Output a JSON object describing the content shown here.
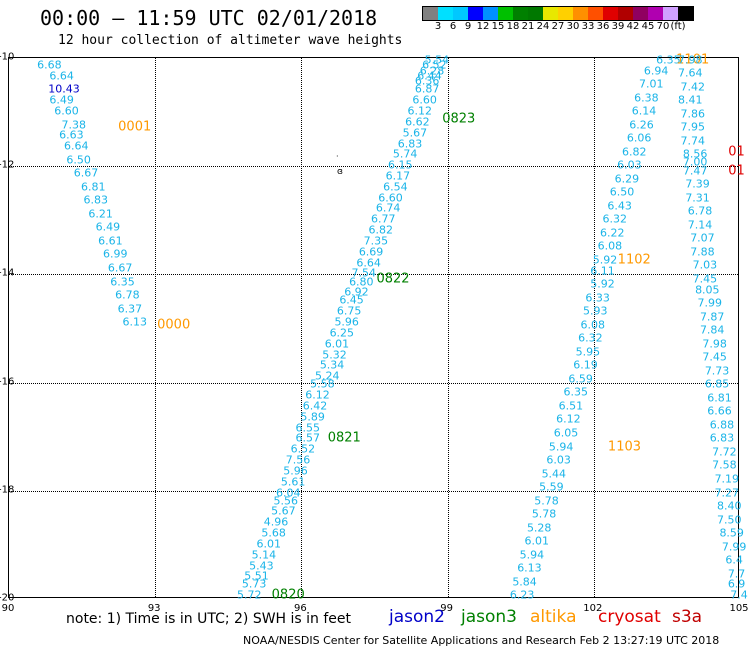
{
  "title": "00:00 – 11:59 UTC 02/01/2018",
  "subtitle": "12 hour collection of altimeter wave heights",
  "colorbar": {
    "colors": [
      "#808080",
      "#00e0ff",
      "#00c8ff",
      "#0000ff",
      "#0090ff",
      "#00c000",
      "#008000",
      "#007800",
      "#e8e800",
      "#ffd000",
      "#ff9000",
      "#ff5000",
      "#e00000",
      "#b00000",
      "#900060",
      "#b000b0",
      "#d0a0ff",
      "#000000"
    ],
    "ticks": [
      "3",
      "6",
      "9",
      "12",
      "15",
      "18",
      "21",
      "24",
      "27",
      "30",
      "33",
      "36",
      "39",
      "42",
      "45",
      "70",
      "(ft)"
    ]
  },
  "axes": {
    "x_ticks": [
      "90",
      "93",
      "96",
      "99",
      "102",
      "105"
    ],
    "y_ticks": [
      "-10",
      "-12",
      "-14",
      "-16",
      "-18",
      "-20"
    ],
    "xlim": [
      90,
      105
    ],
    "ylim": [
      -20,
      -10
    ],
    "grid": true
  },
  "note": "note: 1) Time is in UTC; 2) SWH is in feet",
  "legend": [
    {
      "name": "jason2",
      "color": "#0000c8"
    },
    {
      "name": "jason3",
      "color": "#008000"
    },
    {
      "name": "altika",
      "color": "#ff9900"
    },
    {
      "name": "cryosat",
      "color": "#e00000"
    },
    {
      "name": "s3a",
      "color": "#c00000"
    }
  ],
  "credit": "NOAA/NESDIS Center for Satellite Applications and Research   Feb  2 13:27:19 UTC 2018",
  "chart_data": {
    "type": "scatter",
    "title": "12 hour collection of altimeter wave heights",
    "xlim": [
      90,
      105
    ],
    "ylim": [
      -20,
      -10
    ],
    "units": "ft",
    "tracks": [
      {
        "pass_time": "0001",
        "satellite": "altika",
        "time_label": {
          "x": 92.6,
          "y": -11.3,
          "color": "#ff9900"
        },
        "points": [
          {
            "x": 90.85,
            "y": -10.15,
            "v": "6.68"
          },
          {
            "x": 91.1,
            "y": -10.35,
            "v": "6.64"
          },
          {
            "x": 91.15,
            "y": -10.6,
            "v": "10.43",
            "color": "#0000c8"
          },
          {
            "x": 91.1,
            "y": -10.8,
            "v": "6.49"
          },
          {
            "x": 91.2,
            "y": -11.0,
            "v": "6.60"
          },
          {
            "x": 91.35,
            "y": -11.25,
            "v": "7.38"
          },
          {
            "x": 91.3,
            "y": -11.45,
            "v": "6.63"
          },
          {
            "x": 91.4,
            "y": -11.65,
            "v": "6.64"
          },
          {
            "x": 91.45,
            "y": -11.9,
            "v": "6.50"
          },
          {
            "x": 91.6,
            "y": -12.15,
            "v": "6.67"
          },
          {
            "x": 91.75,
            "y": -12.4,
            "v": "6.81"
          },
          {
            "x": 91.8,
            "y": -12.65,
            "v": "6.83"
          },
          {
            "x": 91.9,
            "y": -12.9,
            "v": "6.21"
          },
          {
            "x": 92.05,
            "y": -13.15,
            "v": "6.49"
          },
          {
            "x": 92.1,
            "y": -13.4,
            "v": "6.61"
          },
          {
            "x": 92.2,
            "y": -13.65,
            "v": "6.99"
          },
          {
            "x": 92.3,
            "y": -13.9,
            "v": "6.67"
          },
          {
            "x": 92.35,
            "y": -14.15,
            "v": "6.35"
          },
          {
            "x": 92.45,
            "y": -14.4,
            "v": "6.78"
          },
          {
            "x": 92.5,
            "y": -14.65,
            "v": "6.37"
          },
          {
            "x": 92.6,
            "y": -14.9,
            "v": "6.13"
          }
        ]
      },
      {
        "pass_time": "0000",
        "satellite": "altika",
        "time_label": {
          "x": 93.4,
          "y": -14.95,
          "color": "#ff9900"
        },
        "points": []
      },
      {
        "pass_time": "0823",
        "satellite": "jason3",
        "time_label": {
          "x": 99.25,
          "y": -11.15,
          "color": "#008000"
        },
        "points": [
          {
            "x": 98.8,
            "y": -10.05,
            "v": "5.54"
          },
          {
            "x": 98.75,
            "y": -10.15,
            "v": "6.52"
          },
          {
            "x": 98.7,
            "y": -10.25,
            "v": "6.28"
          },
          {
            "x": 98.65,
            "y": -10.35,
            "v": "6.44"
          },
          {
            "x": 98.6,
            "y": -10.45,
            "v": "6.36"
          },
          {
            "x": 98.6,
            "y": -10.6,
            "v": "6.87"
          },
          {
            "x": 98.55,
            "y": -10.8,
            "v": "6.60"
          },
          {
            "x": 98.45,
            "y": -11.0,
            "v": "6.12"
          },
          {
            "x": 98.4,
            "y": -11.2,
            "v": "6.62"
          },
          {
            "x": 98.35,
            "y": -11.4,
            "v": "5.67"
          },
          {
            "x": 98.25,
            "y": -11.6,
            "v": "6.83"
          },
          {
            "x": 98.15,
            "y": -11.8,
            "v": "5.74"
          },
          {
            "x": 98.05,
            "y": -12.0,
            "v": "6.15"
          },
          {
            "x": 98.0,
            "y": -12.2,
            "v": "6.17"
          },
          {
            "x": 97.95,
            "y": -12.4,
            "v": "6.54"
          },
          {
            "x": 97.85,
            "y": -12.6,
            "v": "6.60"
          },
          {
            "x": 97.8,
            "y": -12.8,
            "v": "6.74"
          },
          {
            "x": 97.7,
            "y": -13.0,
            "v": "6.77"
          },
          {
            "x": 97.65,
            "y": -13.2,
            "v": "6.82"
          },
          {
            "x": 97.55,
            "y": -13.4,
            "v": "7.35"
          },
          {
            "x": 97.45,
            "y": -13.6,
            "v": "6.69"
          },
          {
            "x": 97.4,
            "y": -13.8,
            "v": "6.64"
          },
          {
            "x": 97.3,
            "y": -14.0,
            "v": "7.54"
          },
          {
            "x": 97.25,
            "y": -14.15,
            "v": "6.80"
          },
          {
            "x": 97.15,
            "y": -14.35,
            "v": "6.92"
          },
          {
            "x": 97.05,
            "y": -14.5,
            "v": "6.45"
          },
          {
            "x": 97.0,
            "y": -14.7,
            "v": "6.75"
          },
          {
            "x": 96.95,
            "y": -14.9,
            "v": "5.96"
          },
          {
            "x": 96.85,
            "y": -15.1,
            "v": "6.25"
          },
          {
            "x": 96.75,
            "y": -15.3,
            "v": "6.01"
          },
          {
            "x": 96.7,
            "y": -15.5,
            "v": "5.32"
          },
          {
            "x": 96.65,
            "y": -15.7,
            "v": "5.34"
          },
          {
            "x": 96.55,
            "y": -15.9,
            "v": "5.24"
          },
          {
            "x": 96.45,
            "y": -16.05,
            "v": "5.58"
          },
          {
            "x": 96.35,
            "y": -16.25,
            "v": "6.12"
          },
          {
            "x": 96.3,
            "y": -16.45,
            "v": "6.42"
          },
          {
            "x": 96.25,
            "y": -16.65,
            "v": "5.89"
          },
          {
            "x": 96.15,
            "y": -16.85,
            "v": "6.55"
          },
          {
            "x": 96.15,
            "y": -17.05,
            "v": "6.57"
          },
          {
            "x": 96.05,
            "y": -17.25,
            "v": "6.52"
          },
          {
            "x": 95.95,
            "y": -17.45,
            "v": "7.56"
          },
          {
            "x": 95.9,
            "y": -17.65,
            "v": "5.96"
          },
          {
            "x": 95.85,
            "y": -17.85,
            "v": "5.61"
          },
          {
            "x": 95.75,
            "y": -18.05,
            "v": "6.04"
          },
          {
            "x": 95.7,
            "y": -18.2,
            "v": "5.56"
          },
          {
            "x": 95.65,
            "y": -18.4,
            "v": "5.67"
          },
          {
            "x": 95.5,
            "y": -18.6,
            "v": "4.96"
          },
          {
            "x": 95.45,
            "y": -18.8,
            "v": "5.68"
          },
          {
            "x": 95.35,
            "y": -19.0,
            "v": "6.01"
          },
          {
            "x": 95.25,
            "y": -19.2,
            "v": "5.14"
          },
          {
            "x": 95.2,
            "y": -19.4,
            "v": "5.43"
          },
          {
            "x": 95.1,
            "y": -19.6,
            "v": "5.51"
          },
          {
            "x": 95.05,
            "y": -19.75,
            "v": "5.73"
          },
          {
            "x": 94.95,
            "y": -19.95,
            "v": "5.72"
          }
        ]
      },
      {
        "pass_time": "0822",
        "satellite": "jason3",
        "time_label": {
          "x": 97.9,
          "y": -14.1,
          "color": "#008000"
        },
        "points": []
      },
      {
        "pass_time": "0821",
        "satellite": "jason3",
        "time_label": {
          "x": 96.9,
          "y": -17.05,
          "color": "#008000"
        },
        "points": []
      },
      {
        "pass_time": "0820",
        "satellite": "jason3",
        "time_label": {
          "x": 95.75,
          "y": -19.95,
          "color": "#008000"
        },
        "points": []
      },
      {
        "pass_time": "1101",
        "satellite": "altika",
        "time_label": {
          "x": 104.05,
          "y": -10.05,
          "color": "#ff9900"
        },
        "points": [
          {
            "x": 103.55,
            "y": -10.05,
            "v": "6.35"
          },
          {
            "x": 103.3,
            "y": -10.25,
            "v": "6.94"
          },
          {
            "x": 103.2,
            "y": -10.5,
            "v": "7.01"
          },
          {
            "x": 103.1,
            "y": -10.75,
            "v": "6.38"
          },
          {
            "x": 103.05,
            "y": -11.0,
            "v": "6.14"
          },
          {
            "x": 103.0,
            "y": -11.25,
            "v": "6.26"
          },
          {
            "x": 102.95,
            "y": -11.5,
            "v": "6.06"
          },
          {
            "x": 102.85,
            "y": -11.75,
            "v": "6.82"
          },
          {
            "x": 102.75,
            "y": -12.0,
            "v": "6.03"
          },
          {
            "x": 102.7,
            "y": -12.25,
            "v": "6.29"
          },
          {
            "x": 102.6,
            "y": -12.5,
            "v": "6.50"
          },
          {
            "x": 102.55,
            "y": -12.75,
            "v": "6.43"
          },
          {
            "x": 102.45,
            "y": -13.0,
            "v": "6.32"
          },
          {
            "x": 102.4,
            "y": -13.25,
            "v": "6.22"
          },
          {
            "x": 102.35,
            "y": -13.5,
            "v": "6.08"
          },
          {
            "x": 102.25,
            "y": -13.75,
            "v": "5.92"
          },
          {
            "x": 102.2,
            "y": -13.95,
            "v": "6.11"
          }
        ]
      },
      {
        "pass_time": "1102",
        "satellite": "altika",
        "time_label": {
          "x": 102.85,
          "y": -13.75,
          "color": "#ff9900"
        },
        "points": [
          {
            "x": 102.2,
            "y": -14.2,
            "v": "5.92"
          },
          {
            "x": 102.1,
            "y": -14.45,
            "v": "6.33"
          },
          {
            "x": 102.05,
            "y": -14.7,
            "v": "5.93"
          },
          {
            "x": 102.0,
            "y": -14.95,
            "v": "6.08"
          },
          {
            "x": 101.95,
            "y": -15.2,
            "v": "6.32"
          },
          {
            "x": 101.9,
            "y": -15.45,
            "v": "5.95"
          },
          {
            "x": 101.85,
            "y": -15.7,
            "v": "6.19"
          },
          {
            "x": 101.75,
            "y": -15.95,
            "v": "6.59"
          },
          {
            "x": 101.65,
            "y": -16.2,
            "v": "6.35"
          },
          {
            "x": 101.55,
            "y": -16.45,
            "v": "6.51"
          },
          {
            "x": 101.5,
            "y": -16.7,
            "v": "6.12"
          },
          {
            "x": 101.45,
            "y": -16.95,
            "v": "6.05"
          },
          {
            "x": 101.35,
            "y": -17.2,
            "v": "5.94"
          },
          {
            "x": 101.3,
            "y": -17.45,
            "v": "6.03"
          }
        ]
      },
      {
        "pass_time": "1103",
        "satellite": "altika",
        "time_label": {
          "x": 102.65,
          "y": -17.2,
          "color": "#ff9900"
        },
        "points": [
          {
            "x": 101.2,
            "y": -17.7,
            "v": "5.44"
          },
          {
            "x": 101.15,
            "y": -17.95,
            "v": "5.59"
          },
          {
            "x": 101.05,
            "y": -18.2,
            "v": "5.78"
          },
          {
            "x": 101.0,
            "y": -18.45,
            "v": "5.78"
          },
          {
            "x": 100.9,
            "y": -18.7,
            "v": "5.28"
          },
          {
            "x": 100.85,
            "y": -18.95,
            "v": "6.01"
          },
          {
            "x": 100.75,
            "y": -19.2,
            "v": "5.94"
          },
          {
            "x": 100.7,
            "y": -19.45,
            "v": "6.13"
          },
          {
            "x": 100.6,
            "y": -19.7,
            "v": "5.84"
          },
          {
            "x": 100.55,
            "y": -19.95,
            "v": "6.23"
          }
        ]
      },
      {
        "pass_time": "",
        "satellite": "altika",
        "time_label": null,
        "points": [
          {
            "x": 104.0,
            "y": -10.05,
            "v": "7.98"
          },
          {
            "x": 104.0,
            "y": -10.3,
            "v": "7.64"
          },
          {
            "x": 104.05,
            "y": -10.55,
            "v": "7.42"
          },
          {
            "x": 104.0,
            "y": -10.8,
            "v": "8.41"
          },
          {
            "x": 104.05,
            "y": -11.05,
            "v": "7.86"
          },
          {
            "x": 104.05,
            "y": -11.3,
            "v": "7.95"
          },
          {
            "x": 104.05,
            "y": -11.55,
            "v": "7.74"
          },
          {
            "x": 104.1,
            "y": -11.8,
            "v": "8.56"
          },
          {
            "x": 104.1,
            "y": -11.95,
            "v": "7.00"
          },
          {
            "x": 104.1,
            "y": -12.1,
            "v": "7.47"
          },
          {
            "x": 104.15,
            "y": -12.35,
            "v": "7.39"
          },
          {
            "x": 104.15,
            "y": -12.6,
            "v": "7.31"
          },
          {
            "x": 104.2,
            "y": -12.85,
            "v": "6.78"
          },
          {
            "x": 104.2,
            "y": -13.1,
            "v": "7.14"
          },
          {
            "x": 104.25,
            "y": -13.35,
            "v": "7.07"
          },
          {
            "x": 104.25,
            "y": -13.6,
            "v": "7.88"
          },
          {
            "x": 104.3,
            "y": -13.85,
            "v": "7.03"
          },
          {
            "x": 104.3,
            "y": -14.1,
            "v": "7.45"
          },
          {
            "x": 104.35,
            "y": -14.3,
            "v": "8.05"
          },
          {
            "x": 104.4,
            "y": -14.55,
            "v": "7.99"
          },
          {
            "x": 104.45,
            "y": -14.8,
            "v": "7.87"
          },
          {
            "x": 104.45,
            "y": -15.05,
            "v": "7.84"
          },
          {
            "x": 104.5,
            "y": -15.3,
            "v": "7.98"
          },
          {
            "x": 104.5,
            "y": -15.55,
            "v": "7.45"
          },
          {
            "x": 104.55,
            "y": -15.8,
            "v": "7.73"
          },
          {
            "x": 104.55,
            "y": -16.05,
            "v": "6.85"
          },
          {
            "x": 104.6,
            "y": -16.3,
            "v": "6.81"
          },
          {
            "x": 104.6,
            "y": -16.55,
            "v": "6.66"
          },
          {
            "x": 104.65,
            "y": -16.8,
            "v": "6.88"
          },
          {
            "x": 104.65,
            "y": -17.05,
            "v": "6.83"
          },
          {
            "x": 104.7,
            "y": -17.3,
            "v": "7.72"
          },
          {
            "x": 104.7,
            "y": -17.55,
            "v": "7.58"
          },
          {
            "x": 104.75,
            "y": -17.8,
            "v": "7.19"
          },
          {
            "x": 104.75,
            "y": -18.05,
            "v": "7.27"
          },
          {
            "x": 104.8,
            "y": -18.3,
            "v": "8.40"
          },
          {
            "x": 104.8,
            "y": -18.55,
            "v": "7.50"
          },
          {
            "x": 104.85,
            "y": -18.8,
            "v": "8.59"
          },
          {
            "x": 104.9,
            "y": -19.05,
            "v": "7.99"
          },
          {
            "x": 104.9,
            "y": -19.3,
            "v": "6.4"
          },
          {
            "x": 104.95,
            "y": -19.55,
            "v": "7.7"
          },
          {
            "x": 104.95,
            "y": -19.75,
            "v": "6.9"
          },
          {
            "x": 105.0,
            "y": -19.95,
            "v": "7.4"
          }
        ]
      },
      {
        "pass_time": "01",
        "satellite": "cryosat",
        "time_label": {
          "x": 104.95,
          "y": -11.75,
          "color": "#e00000"
        },
        "points": []
      },
      {
        "pass_time": "01",
        "satellite": "cryosat",
        "time_label": {
          "x": 104.95,
          "y": -12.1,
          "color": "#e00000"
        },
        "points": []
      }
    ]
  }
}
